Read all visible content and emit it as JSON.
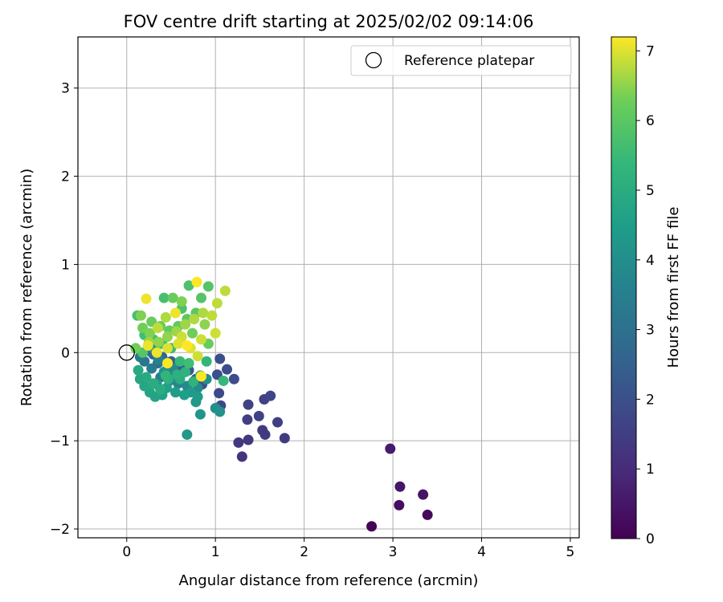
{
  "chart_data": {
    "type": "scatter",
    "title": "FOV centre drift starting at 2025/02/02 09:14:06",
    "xlabel": "Angular distance from reference (arcmin)",
    "ylabel": "Rotation from reference (arcmin)",
    "xlim": [
      -0.55,
      5.1
    ],
    "ylim": [
      -2.1,
      3.58
    ],
    "xticks": [
      0,
      1,
      2,
      3,
      4,
      5
    ],
    "yticks": [
      -2,
      -1,
      0,
      1,
      2,
      3
    ],
    "grid": true,
    "legend": {
      "position": "top-right",
      "entries": [
        "Reference platepar"
      ]
    },
    "reference_point": {
      "label": "Reference platepar",
      "x": 0,
      "y": 0,
      "marker": "open-circle"
    },
    "colorbar": {
      "label": "Hours from first FF file",
      "min": 0,
      "max": 7.2,
      "ticks": [
        0,
        1,
        2,
        3,
        4,
        5,
        6,
        7
      ],
      "colormap": "viridis"
    },
    "points": [
      [
        2.76,
        -1.97,
        0.1
      ],
      [
        3.39,
        -1.84,
        0.2
      ],
      [
        3.07,
        -1.73,
        0.3
      ],
      [
        3.34,
        -1.61,
        0.4
      ],
      [
        3.08,
        -1.52,
        0.5
      ],
      [
        2.97,
        -1.09,
        0.6
      ],
      [
        1.3,
        -1.18,
        1.2
      ],
      [
        1.26,
        -1.02,
        1.3
      ],
      [
        1.37,
        -0.99,
        1.3
      ],
      [
        1.56,
        -0.93,
        1.4
      ],
      [
        1.53,
        -0.88,
        1.4
      ],
      [
        1.78,
        -0.97,
        1.4
      ],
      [
        1.7,
        -0.79,
        1.5
      ],
      [
        1.36,
        -0.76,
        1.5
      ],
      [
        1.49,
        -0.72,
        1.6
      ],
      [
        1.37,
        -0.59,
        1.6
      ],
      [
        1.55,
        -0.53,
        1.6
      ],
      [
        1.62,
        -0.49,
        1.7
      ],
      [
        1.06,
        -0.6,
        1.8
      ],
      [
        1.04,
        -0.46,
        1.8
      ],
      [
        1.21,
        -0.3,
        1.9
      ],
      [
        1.13,
        -0.19,
        1.9
      ],
      [
        1.05,
        -0.07,
        2.0
      ],
      [
        1.02,
        -0.25,
        2.0
      ],
      [
        0.85,
        -0.36,
        2.1
      ],
      [
        0.78,
        -0.3,
        2.2
      ],
      [
        0.7,
        -0.2,
        2.3
      ],
      [
        0.6,
        -0.15,
        2.4
      ],
      [
        0.5,
        -0.1,
        2.5
      ],
      [
        0.4,
        -0.05,
        2.6
      ],
      [
        0.3,
        -0.02,
        2.7
      ],
      [
        0.25,
        0.02,
        2.8
      ],
      [
        0.35,
        -0.12,
        2.9
      ],
      [
        0.45,
        -0.2,
        3.0
      ],
      [
        0.55,
        -0.25,
        3.1
      ],
      [
        0.2,
        -0.1,
        3.2
      ],
      [
        0.15,
        -0.05,
        3.3
      ],
      [
        0.28,
        -0.18,
        3.4
      ],
      [
        0.38,
        -0.28,
        3.5
      ],
      [
        0.48,
        -0.32,
        3.6
      ],
      [
        0.58,
        -0.35,
        3.7
      ],
      [
        0.68,
        -0.38,
        3.8
      ],
      [
        0.8,
        -0.4,
        3.9
      ],
      [
        0.9,
        -0.3,
        4.0
      ],
      [
        1.0,
        -0.63,
        4.0
      ],
      [
        1.05,
        -0.67,
        4.1
      ],
      [
        0.83,
        -0.7,
        4.2
      ],
      [
        0.78,
        -0.56,
        4.3
      ],
      [
        0.68,
        -0.93,
        4.3
      ],
      [
        0.8,
        -0.5,
        4.4
      ],
      [
        0.72,
        -0.45,
        4.4
      ],
      [
        0.65,
        -0.48,
        4.5
      ],
      [
        0.55,
        -0.45,
        4.5
      ],
      [
        0.45,
        -0.4,
        4.6
      ],
      [
        0.4,
        -0.48,
        4.6
      ],
      [
        0.32,
        -0.5,
        4.7
      ],
      [
        0.26,
        -0.45,
        4.7
      ],
      [
        0.2,
        -0.38,
        4.8
      ],
      [
        0.15,
        -0.3,
        4.8
      ],
      [
        0.13,
        -0.2,
        4.9
      ],
      [
        0.22,
        -0.28,
        4.9
      ],
      [
        0.3,
        -0.35,
        5.0
      ],
      [
        0.38,
        -0.42,
        5.0
      ],
      [
        0.47,
        -0.3,
        5.1
      ],
      [
        0.57,
        -0.25,
        5.1
      ],
      [
        0.66,
        -0.22,
        5.2
      ],
      [
        0.75,
        -0.33,
        5.2
      ],
      [
        0.83,
        -0.26,
        5.3
      ],
      [
        0.9,
        -0.1,
        5.3
      ],
      [
        1.09,
        -0.32,
        5.4
      ],
      [
        0.6,
        -0.1,
        5.4
      ],
      [
        0.5,
        0.05,
        5.5
      ],
      [
        0.4,
        0.1,
        5.5
      ],
      [
        0.3,
        0.15,
        5.6
      ],
      [
        0.2,
        0.2,
        5.6
      ],
      [
        0.12,
        0.42,
        5.7
      ],
      [
        0.42,
        0.62,
        5.7
      ],
      [
        0.62,
        0.5,
        5.8
      ],
      [
        0.7,
        0.76,
        5.8
      ],
      [
        0.84,
        0.62,
        5.9
      ],
      [
        0.92,
        0.75,
        5.9
      ],
      [
        0.78,
        0.45,
        6.0
      ],
      [
        0.68,
        0.38,
        6.0
      ],
      [
        0.58,
        0.3,
        6.1
      ],
      [
        0.48,
        0.25,
        6.1
      ],
      [
        0.38,
        0.3,
        6.2
      ],
      [
        0.28,
        0.35,
        6.2
      ],
      [
        0.18,
        0.28,
        6.3
      ],
      [
        0.1,
        0.05,
        6.3
      ],
      [
        0.16,
        0.42,
        6.4
      ],
      [
        0.26,
        0.22,
        6.4
      ],
      [
        0.36,
        0.12,
        6.5
      ],
      [
        0.46,
        0.18,
        6.5
      ],
      [
        0.56,
        0.24,
        6.6
      ],
      [
        0.66,
        0.32,
        6.6
      ],
      [
        0.76,
        0.38,
        6.7
      ],
      [
        0.86,
        0.45,
        6.7
      ],
      [
        0.96,
        0.42,
        6.8
      ],
      [
        1.02,
        0.56,
        6.8
      ],
      [
        1.11,
        0.7,
        6.8
      ],
      [
        1.0,
        0.22,
        6.9
      ],
      [
        0.84,
        0.15,
        6.9
      ],
      [
        0.8,
        -0.04,
        6.9
      ],
      [
        0.72,
        0.05,
        7.0
      ],
      [
        0.58,
        0.1,
        7.0
      ],
      [
        0.46,
        0.05,
        7.0
      ],
      [
        0.34,
        0.0,
        7.1
      ],
      [
        0.24,
        0.08,
        7.1
      ],
      [
        0.22,
        0.61,
        7.1
      ],
      [
        0.79,
        0.8,
        7.2
      ],
      [
        0.84,
        -0.27,
        7.2
      ],
      [
        0.46,
        -0.12,
        7.2
      ],
      [
        0.68,
        0.08,
        7.2
      ],
      [
        0.55,
        0.45,
        7.1
      ],
      [
        0.35,
        0.28,
        6.8
      ],
      [
        0.44,
        0.4,
        6.7
      ],
      [
        0.62,
        0.58,
        6.4
      ],
      [
        0.52,
        0.62,
        6.2
      ],
      [
        0.3,
        0.05,
        4.2
      ],
      [
        0.42,
        -0.22,
        4.1
      ],
      [
        0.52,
        -0.18,
        3.9
      ],
      [
        0.36,
        -0.08,
        3.6
      ],
      [
        0.6,
        -0.3,
        5.0
      ],
      [
        0.7,
        -0.12,
        5.6
      ],
      [
        0.25,
        0.12,
        6.6
      ],
      [
        0.74,
        0.22,
        6.3
      ],
      [
        0.88,
        0.32,
        6.5
      ],
      [
        0.62,
        0.18,
        6.9
      ],
      [
        0.18,
        0.0,
        5.9
      ],
      [
        0.34,
        -0.36,
        4.4
      ],
      [
        0.44,
        -0.26,
        5.3
      ],
      [
        0.92,
        0.1,
        6.2
      ]
    ]
  }
}
